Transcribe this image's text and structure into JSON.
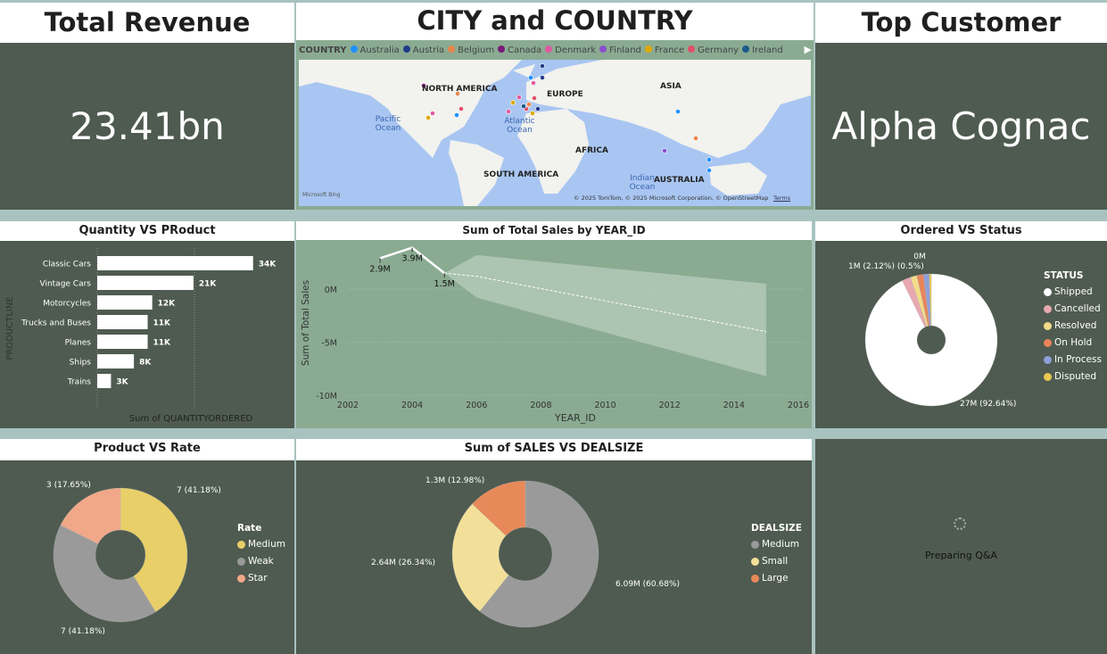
{
  "kpi_revenue": {
    "title": "Total Revenue",
    "value": "23.41bn"
  },
  "kpi_customer": {
    "title": "Top Customer",
    "value": "Alpha Cognac"
  },
  "map": {
    "title": "CITY and COUNTRY",
    "legend_title": "COUNTRY",
    "countries": [
      {
        "name": "Australia",
        "color": "#1e90ff"
      },
      {
        "name": "Austria",
        "color": "#223a8a"
      },
      {
        "name": "Belgium",
        "color": "#e8854a"
      },
      {
        "name": "Canada",
        "color": "#7a1a7a"
      },
      {
        "name": "Denmark",
        "color": "#e05aa0"
      },
      {
        "name": "Finland",
        "color": "#8a4fd0"
      },
      {
        "name": "France",
        "color": "#e0a800"
      },
      {
        "name": "Germany",
        "color": "#e0506a"
      },
      {
        "name": "Ireland",
        "color": "#1c5a8a"
      }
    ],
    "labels": {
      "na": "NORTH AMERICA",
      "eu": "EUROPE",
      "asia": "ASIA",
      "africa": "AFRICA",
      "sa": "SOUTH AMERICA",
      "au": "AUSTRALIA",
      "pacific": "Pacific Ocean",
      "atlantic": "Atlantic Ocean",
      "indian": "Indian Ocean"
    },
    "attribution": "© 2025 TomTom, © 2025 Microsoft Corporation, © OpenStreetMap",
    "terms": "Terms",
    "bing": "Microsoft Bing"
  },
  "qa": {
    "text": "Preparing Q&A"
  },
  "chart_data": [
    {
      "type": "bar",
      "title": "Quantity VS PRoduct",
      "xlabel": "Sum of QUANTITYORDERED",
      "ylabel": "PRODUCTLINE",
      "categories": [
        "Classic Cars",
        "Vintage Cars",
        "Motorcycles",
        "Trucks and Buses",
        "Planes",
        "Ships",
        "Trains"
      ],
      "values": [
        34000,
        21000,
        12000,
        11000,
        11000,
        8000,
        3000
      ],
      "labels": [
        "34K",
        "21K",
        "12K",
        "11K",
        "11K",
        "8K",
        "3K"
      ],
      "xlim": [
        0,
        36000
      ]
    },
    {
      "type": "line",
      "title": "Sum of Total Sales by YEAR_ID",
      "xlabel": "YEAR_ID",
      "ylabel": "Sum of Total Sales",
      "x": [
        2003,
        2004,
        2005
      ],
      "values": [
        2.9,
        3.9,
        1.5
      ],
      "labels": [
        "2.9M",
        "3.9M",
        "1.5M"
      ],
      "forecast": {
        "x": [
          2005,
          2006,
          2015
        ],
        "center": [
          1.5,
          1.2,
          -4.0
        ],
        "upper": [
          1.5,
          3.2,
          0.5
        ],
        "lower": [
          1.5,
          -0.8,
          -8.2
        ]
      },
      "xticks": [
        2002,
        2004,
        2006,
        2008,
        2010,
        2012,
        2014,
        2016
      ],
      "yticks": [
        {
          "v": 0,
          "l": "0M"
        },
        {
          "v": -5,
          "l": "-5M"
        },
        {
          "v": -10,
          "l": "-10M"
        }
      ],
      "xlim": [
        2002,
        2016
      ],
      "ylim": [
        -10,
        4.2
      ]
    },
    {
      "type": "pie",
      "title": "Ordered VS Status",
      "legend_title": "STATUS",
      "categories": [
        "Shipped",
        "Cancelled",
        "Resolved",
        "On Hold",
        "In Process",
        "Disputed"
      ],
      "values": [
        92.64,
        2.12,
        1.6,
        1.6,
        1.4,
        0.5
      ],
      "colors": [
        "#ffffff",
        "#e8a8b0",
        "#f2dc8a",
        "#e8855a",
        "#8f9fd8",
        "#e8c850"
      ],
      "labels": {
        "main": "27M (92.64%)",
        "small": "1M (2.12%) (0.5%)",
        "zero": "0M"
      }
    },
    {
      "type": "pie",
      "title": "Product VS Rate",
      "legend_title": "Rate",
      "categories": [
        "Medium",
        "Weak",
        "Star"
      ],
      "values": [
        7,
        7,
        3
      ],
      "colors": [
        "#e8cf68",
        "#9a9a9a",
        "#f0a888"
      ],
      "labels": [
        "7 (41.18%)",
        "7 (41.18%)",
        "3 (17.65%)"
      ]
    },
    {
      "type": "pie",
      "title": "Sum of SALES VS DEALSIZE",
      "legend_title": "DEALSIZE",
      "categories": [
        "Medium",
        "Small",
        "Large"
      ],
      "values": [
        6.09,
        2.64,
        1.3
      ],
      "colors": [
        "#9a9a9a",
        "#f2e09a",
        "#e8895a"
      ],
      "labels": [
        "6.09M (60.68%)",
        "2.64M (26.34%)",
        "1.3M (12.98%)"
      ]
    }
  ]
}
